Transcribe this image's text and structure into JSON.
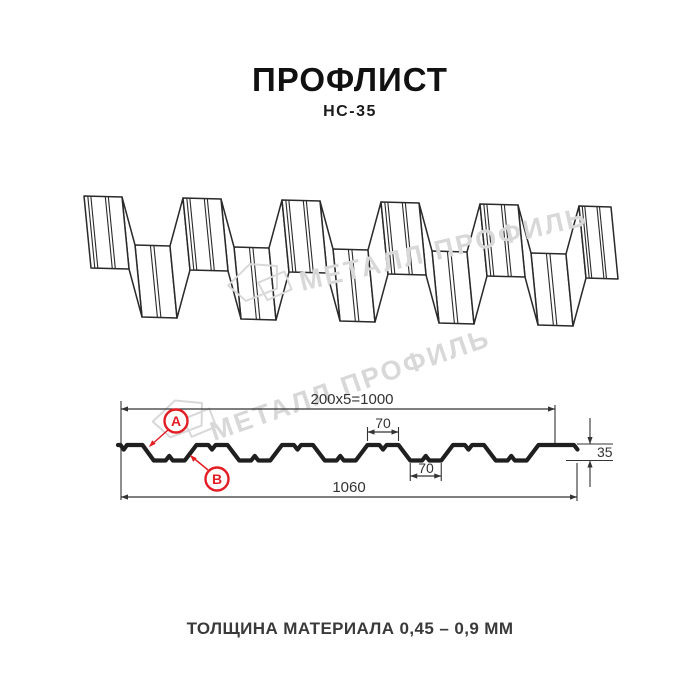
{
  "title": "ПРОФЛИСТ",
  "subtitle": "НС-35",
  "watermark": {
    "brand": "МЕТАЛЛ ПРОФИЛЬ"
  },
  "drawing": {
    "dim_top": "200x5=1000",
    "dim_rib_top": "70",
    "dim_rib_bottom": "70",
    "dim_height": "35",
    "dim_total": "1060",
    "label_a": "A",
    "label_b": "B"
  },
  "footer": {
    "note": "ТОЛЩИНА МАТЕРИАЛА 0,45 – 0,9 ММ"
  },
  "colors": {
    "accent": "#e31e24",
    "line": "#1f1f1f",
    "watermark": "#d8d8d8"
  }
}
